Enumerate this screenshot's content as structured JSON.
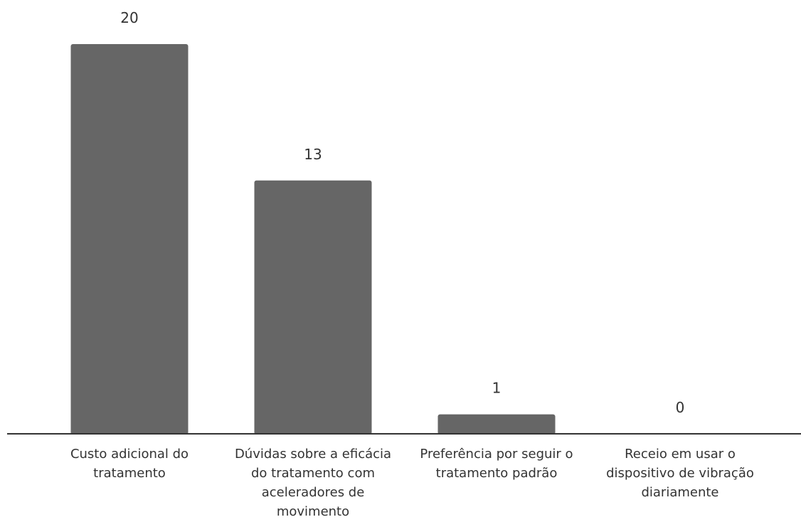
{
  "chart_data": {
    "type": "bar",
    "categories": [
      "Custo adicional do tratamento",
      "Dúvidas sobre a eficácia do tratamento com aceleradores de movimento",
      "Preferência por seguir o tratamento padrão",
      "Receio em usar o dispositivo de vibração diariamente"
    ],
    "category_lines": [
      [
        "Custo adicional do",
        "tratamento"
      ],
      [
        "Dúvidas sobre a eficácia",
        "do tratamento com",
        "aceleradores de",
        "movimento"
      ],
      [
        "Preferência por seguir o",
        "tratamento padrão"
      ],
      [
        "Receio em usar o",
        "dispositivo de vibração",
        "diariamente"
      ]
    ],
    "values": [
      20,
      13,
      1,
      0
    ],
    "value_labels": [
      "20",
      "13",
      "1",
      "0"
    ],
    "title": "",
    "xlabel": "",
    "ylabel": "",
    "ylim": [
      0,
      20
    ],
    "grid": false,
    "legend": "none",
    "bar_color": "#666666",
    "axis_color": "#333333"
  }
}
